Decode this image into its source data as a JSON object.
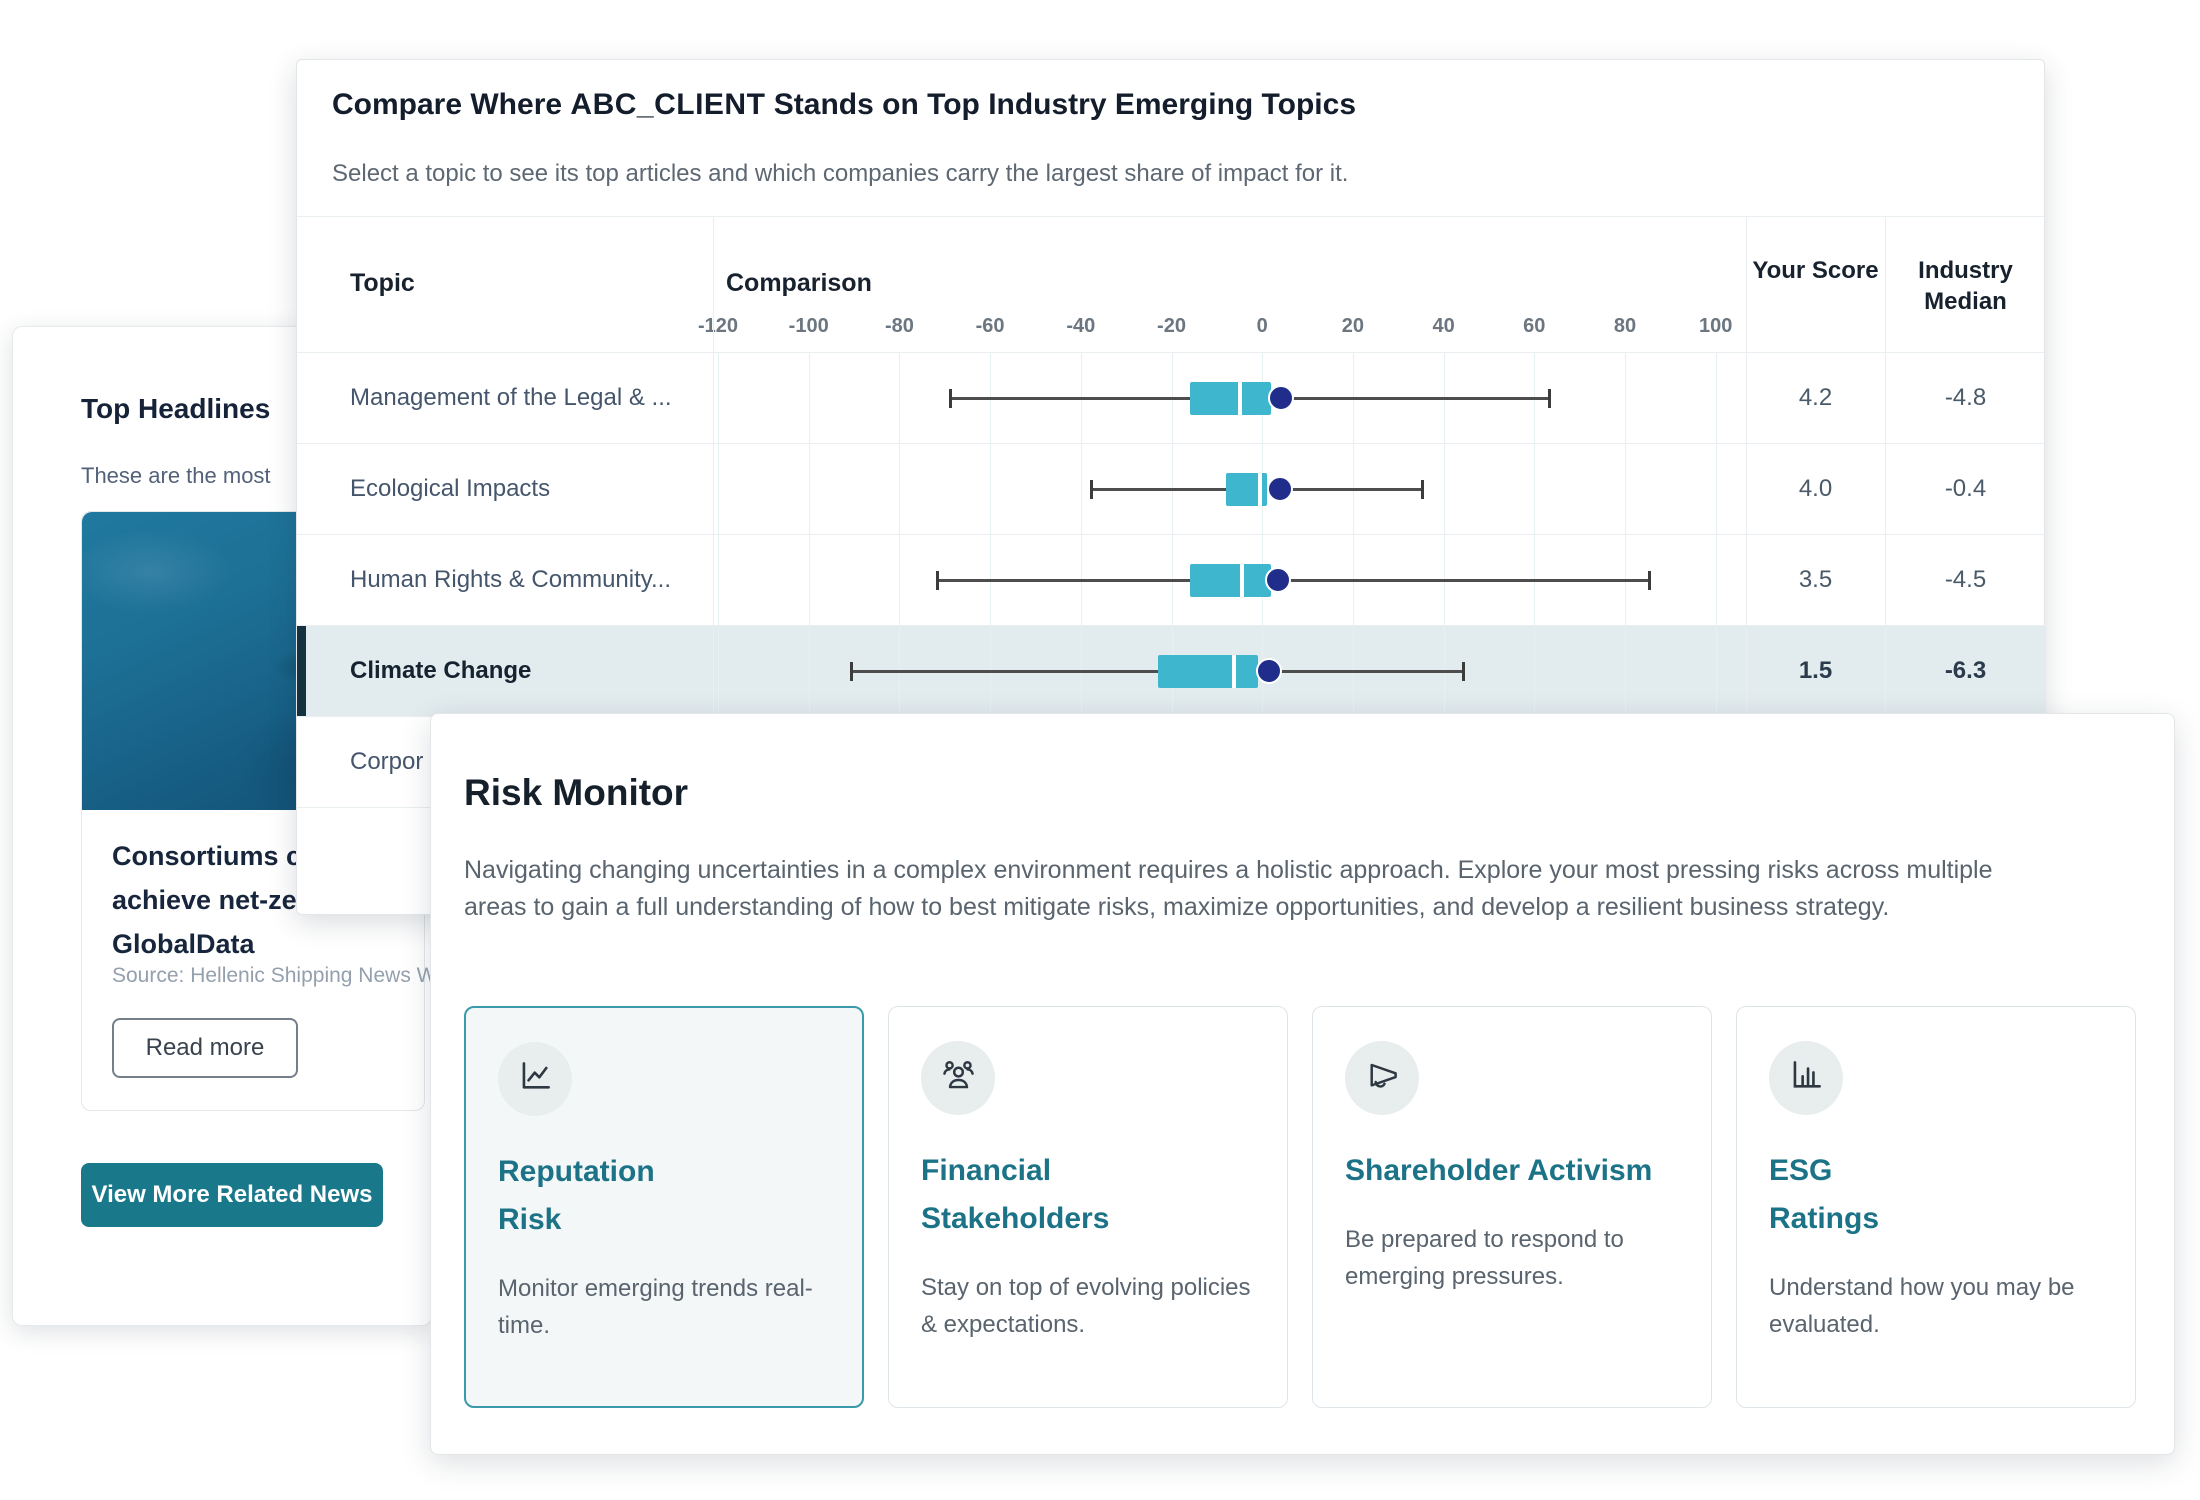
{
  "headlines_panel": {
    "title": "Top Headlines",
    "subtitle_visible": "These are the most",
    "article": {
      "title_lines": [
        "Consortiums ca",
        "achieve net-zer",
        "GlobalData"
      ],
      "source": "Source: Hellenic Shipping News W",
      "read_more_label": "Read more"
    },
    "view_more_label": "View More Related News"
  },
  "compare_panel": {
    "title_prefix": "Compare Where",
    "client_name": "ABC_CLIENT",
    "title_suffix": "Stands on Top Industry Emerging Topics",
    "subtitle": "Select a topic to see its top articles and which companies carry the largest share of impact for it.",
    "columns": {
      "topic": "Topic",
      "comparison": "Comparison",
      "your_score": "Your Score",
      "industry_median": "Industry Median"
    },
    "chart_data": {
      "type": "boxplot",
      "orientation": "horizontal",
      "axis_min": -120,
      "axis_max": 100,
      "ticks": [
        -120,
        -100,
        -80,
        -60,
        -40,
        -20,
        0,
        20,
        40,
        60,
        80,
        100
      ],
      "grid": true,
      "rows": [
        {
          "topic": "Management of the Legal & ...",
          "whisker_low": -69,
          "box_low": -16,
          "median": -4.8,
          "box_high": 2,
          "dot": 4.2,
          "whisker_high": 63,
          "your_score": "4.2",
          "industry_median": "-4.8",
          "selected": false,
          "partial": false
        },
        {
          "topic": "Ecological Impacts",
          "whisker_low": -38,
          "box_low": -8,
          "median": -0.4,
          "box_high": 1,
          "dot": 4.0,
          "whisker_high": 35,
          "your_score": "4.0",
          "industry_median": "-0.4",
          "selected": false,
          "partial": false
        },
        {
          "topic": "Human Rights & Community...",
          "whisker_low": -72,
          "box_low": -16,
          "median": -4.5,
          "box_high": 2,
          "dot": 3.5,
          "whisker_high": 85,
          "your_score": "3.5",
          "industry_median": "-4.5",
          "selected": false,
          "partial": false
        },
        {
          "topic": "Climate Change",
          "whisker_low": -91,
          "box_low": -23,
          "median": -6.3,
          "box_high": -1,
          "dot": 1.5,
          "whisker_high": 44,
          "your_score": "1.5",
          "industry_median": "-6.3",
          "selected": true,
          "partial": false
        },
        {
          "topic": "Corpor",
          "selected": false,
          "partial": true
        }
      ],
      "colors": {
        "box": "#3db6ce",
        "dot": "#202d8a",
        "whisker": "#4d4d4d",
        "selected_row_bg": "#e2ebee",
        "selected_accent": "#16323e"
      }
    }
  },
  "risk_panel": {
    "title": "Risk Monitor",
    "description": "Navigating changing uncertainties in a complex environment requires a holistic approach. Explore your most pressing risks across multiple areas to gain a full understanding of how to best mitigate risks, maximize opportunities, and develop a resilient business strategy.",
    "accent_color": "#1c7387",
    "cards": [
      {
        "icon": "line-chart-icon",
        "title_lines": [
          "Reputation",
          "Risk"
        ],
        "body": "Monitor emerging trends real-time.",
        "selected": true
      },
      {
        "icon": "users-icon",
        "title_lines": [
          "Financial",
          "Stakeholders"
        ],
        "body": "Stay on top of evolving policies & expectations.",
        "selected": false
      },
      {
        "icon": "megaphone-icon",
        "title_lines": [
          "Shareholder Activism"
        ],
        "body": "Be prepared to respond to emerging pressures.",
        "selected": false
      },
      {
        "icon": "bar-chart-icon",
        "title_lines": [
          "ESG",
          "Ratings"
        ],
        "body": "Understand how you may be evaluated.",
        "selected": false
      }
    ]
  }
}
